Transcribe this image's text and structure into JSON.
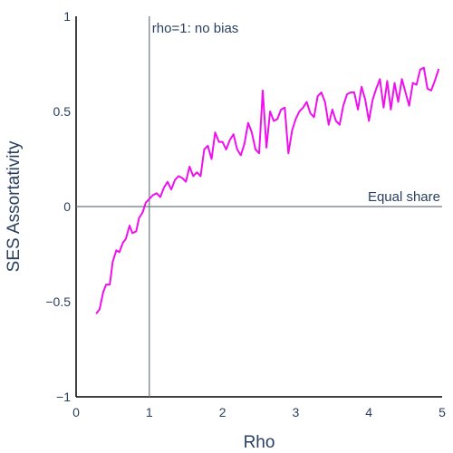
{
  "chart_data": {
    "type": "line",
    "xlabel": "Rho",
    "ylabel": "SES Assortativity",
    "xlim": [
      0,
      5
    ],
    "ylim": [
      -1,
      1
    ],
    "x_ticks": [
      0,
      1,
      2,
      3,
      4,
      5
    ],
    "x_tick_labels": [
      "0",
      "1",
      "2",
      "3",
      "4",
      "5"
    ],
    "y_ticks": [
      1,
      0.5,
      0,
      -0.5,
      -1
    ],
    "y_tick_labels": [
      "1",
      "0.5",
      "0",
      "−0.5",
      "−1"
    ],
    "grid": false,
    "reference_lines": [
      {
        "orientation": "vertical",
        "value": 1,
        "label": "rho=1: no bias"
      },
      {
        "orientation": "horizontal",
        "value": 0,
        "label": "Equal share"
      }
    ],
    "series": [
      {
        "color": "#ee11ee",
        "x": [
          0.28,
          0.32,
          0.37,
          0.41,
          0.46,
          0.5,
          0.55,
          0.59,
          0.64,
          0.68,
          0.73,
          0.77,
          0.82,
          0.86,
          0.91,
          0.95,
          1.0,
          1.05,
          1.1,
          1.15,
          1.2,
          1.25,
          1.3,
          1.35,
          1.4,
          1.45,
          1.5,
          1.55,
          1.6,
          1.65,
          1.7,
          1.75,
          1.8,
          1.85,
          1.9,
          1.95,
          2.0,
          2.05,
          2.1,
          2.15,
          2.2,
          2.25,
          2.3,
          2.35,
          2.4,
          2.45,
          2.5,
          2.55,
          2.6,
          2.65,
          2.7,
          2.75,
          2.8,
          2.85,
          2.9,
          2.95,
          3.0,
          3.05,
          3.1,
          3.15,
          3.2,
          3.25,
          3.3,
          3.35,
          3.4,
          3.45,
          3.5,
          3.55,
          3.6,
          3.65,
          3.7,
          3.75,
          3.8,
          3.85,
          3.9,
          3.95,
          4.0,
          4.05,
          4.1,
          4.15,
          4.2,
          4.25,
          4.3,
          4.35,
          4.4,
          4.45,
          4.5,
          4.55,
          4.6,
          4.65,
          4.7,
          4.75,
          4.8,
          4.85,
          4.9,
          4.95
        ],
        "y": [
          -0.56,
          -0.54,
          -0.45,
          -0.41,
          -0.41,
          -0.29,
          -0.23,
          -0.24,
          -0.19,
          -0.17,
          -0.1,
          -0.14,
          -0.13,
          -0.06,
          -0.03,
          0.02,
          0.04,
          0.06,
          0.07,
          0.05,
          0.1,
          0.13,
          0.09,
          0.14,
          0.16,
          0.15,
          0.13,
          0.21,
          0.16,
          0.18,
          0.16,
          0.3,
          0.32,
          0.25,
          0.39,
          0.34,
          0.34,
          0.3,
          0.35,
          0.38,
          0.3,
          0.27,
          0.33,
          0.44,
          0.39,
          0.3,
          0.28,
          0.61,
          0.31,
          0.5,
          0.45,
          0.46,
          0.51,
          0.52,
          0.28,
          0.4,
          0.46,
          0.5,
          0.52,
          0.55,
          0.49,
          0.47,
          0.58,
          0.6,
          0.55,
          0.43,
          0.51,
          0.45,
          0.43,
          0.53,
          0.59,
          0.6,
          0.6,
          0.51,
          0.63,
          0.56,
          0.45,
          0.56,
          0.62,
          0.67,
          0.52,
          0.66,
          0.51,
          0.65,
          0.55,
          0.67,
          0.6,
          0.53,
          0.65,
          0.64,
          0.72,
          0.73,
          0.62,
          0.61,
          0.66,
          0.72
        ]
      }
    ]
  }
}
